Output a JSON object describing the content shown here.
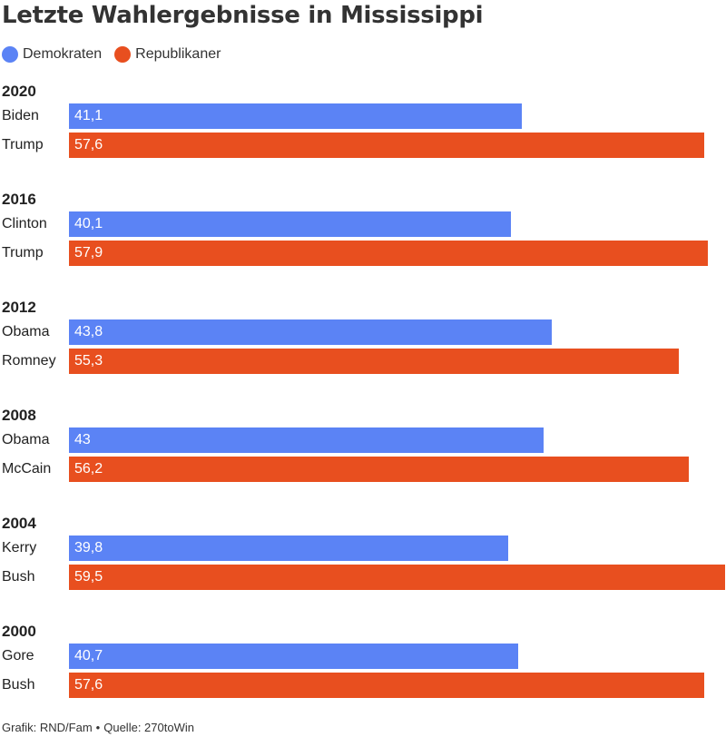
{
  "colors": {
    "dem": "#5b83f5",
    "rep": "#e84f1f"
  },
  "legend": {
    "dem": {
      "label": "Demokraten",
      "color": "#5b83f5"
    },
    "rep": {
      "label": "Republikaner",
      "color": "#e84f1f"
    }
  },
  "footer": {
    "credit": "Grafik: RND/Fam",
    "separator": "•",
    "source": "Quelle: 270toWin"
  },
  "chart_data": {
    "type": "bar",
    "title": "Letzte Wahlergebnisse in Mississippi",
    "xlim": [
      0,
      59.5
    ],
    "legend_position": "top-left",
    "series": [
      {
        "name": "Demokraten",
        "color": "#5b83f5"
      },
      {
        "name": "Republikaner",
        "color": "#e84f1f"
      }
    ],
    "groups": [
      {
        "year": "2020",
        "bars": [
          {
            "candidate": "Biden",
            "party": "dem",
            "value": 41.1,
            "label": "41,1"
          },
          {
            "candidate": "Trump",
            "party": "rep",
            "value": 57.6,
            "label": "57,6"
          }
        ]
      },
      {
        "year": "2016",
        "bars": [
          {
            "candidate": "Clinton",
            "party": "dem",
            "value": 40.1,
            "label": "40,1"
          },
          {
            "candidate": "Trump",
            "party": "rep",
            "value": 57.9,
            "label": "57,9"
          }
        ]
      },
      {
        "year": "2012",
        "bars": [
          {
            "candidate": "Obama",
            "party": "dem",
            "value": 43.8,
            "label": "43,8"
          },
          {
            "candidate": "Romney",
            "party": "rep",
            "value": 55.3,
            "label": "55,3"
          }
        ]
      },
      {
        "year": "2008",
        "bars": [
          {
            "candidate": "Obama",
            "party": "dem",
            "value": 43,
            "label": "43"
          },
          {
            "candidate": "McCain",
            "party": "rep",
            "value": 56.2,
            "label": "56,2"
          }
        ]
      },
      {
        "year": "2004",
        "bars": [
          {
            "candidate": "Kerry",
            "party": "dem",
            "value": 39.8,
            "label": "39,8"
          },
          {
            "candidate": "Bush",
            "party": "rep",
            "value": 59.5,
            "label": "59,5"
          }
        ]
      },
      {
        "year": "2000",
        "bars": [
          {
            "candidate": "Gore",
            "party": "dem",
            "value": 40.7,
            "label": "40,7"
          },
          {
            "candidate": "Bush",
            "party": "rep",
            "value": 57.6,
            "label": "57,6"
          }
        ]
      }
    ]
  }
}
